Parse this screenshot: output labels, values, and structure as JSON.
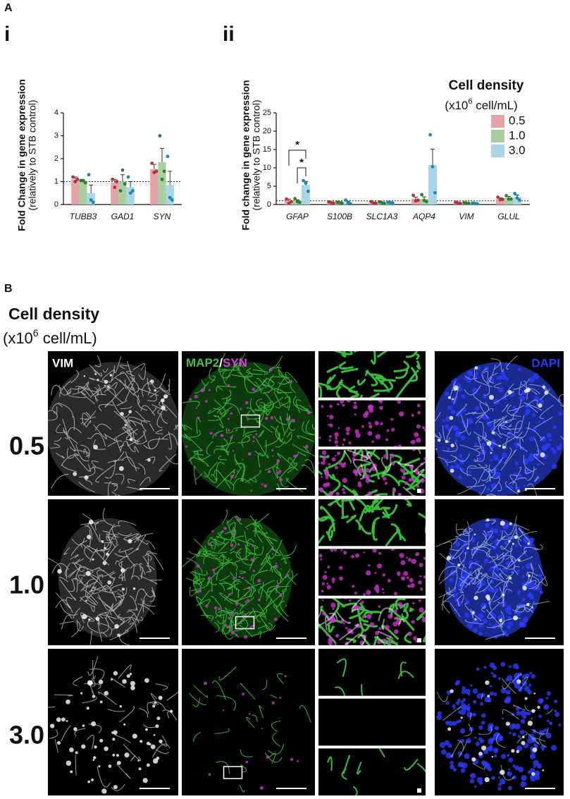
{
  "panel_a": {
    "label": "A",
    "sublabels": [
      "i",
      "ii"
    ]
  },
  "chart_data": [
    {
      "type": "bar",
      "ylabel": [
        "Fold Change in gene expression",
        "(relatively to STB control)"
      ],
      "categories": [
        "TUBB3",
        "GAD1",
        "SYN"
      ],
      "ylim": [
        0,
        4
      ],
      "yticks": [
        0,
        1,
        2,
        3,
        4
      ],
      "reference_line": 1,
      "series": [
        {
          "color": "#e3a2a6",
          "point_color": "#b8313a",
          "values": [
            1.1,
            0.95,
            1.55
          ],
          "errors": [
            0.1,
            0.15,
            0.2
          ],
          "points": [
            [
              1.2,
              1.0,
              1.1
            ],
            [
              1.1,
              0.75,
              1.0
            ],
            [
              1.8,
              1.4,
              1.45
            ]
          ]
        },
        {
          "color": "#a9cfa0",
          "point_color": "#2e7d32",
          "values": [
            1.0,
            1.0,
            1.85
          ],
          "errors": [
            0.05,
            0.3,
            0.6
          ],
          "points": [
            [
              1.05,
              1.05,
              0.95
            ],
            [
              0.6,
              1.5,
              0.9
            ],
            [
              3.0,
              1.1,
              1.45
            ]
          ]
        },
        {
          "color": "#a8d6e6",
          "point_color": "#1b86b3",
          "values": [
            0.5,
            0.75,
            0.85
          ],
          "errors": [
            0.35,
            0.25,
            0.6
          ],
          "points": [
            [
              1.3,
              0.2,
              0.1
            ],
            [
              1.2,
              0.5,
              0.6
            ],
            [
              2.1,
              0.3,
              0.2
            ]
          ]
        }
      ]
    },
    {
      "type": "bar",
      "ylabel": [
        "Fold change in gene expression",
        "(relatively to STB control)"
      ],
      "categories": [
        "GFAP",
        "S100B",
        "SLC1A3",
        "AQP4",
        "VIM",
        "GLUL"
      ],
      "ylim": [
        0,
        25
      ],
      "yticks": [
        0,
        5,
        10,
        15,
        20,
        25
      ],
      "reference_line": 1,
      "legend": {
        "title": "Cell density",
        "subtitle": [
          "(x10",
          "6",
          " cell/mL)"
        ]
      },
      "series": [
        {
          "name": "0.5",
          "color": "#e3a2a6",
          "point_color": "#b8313a",
          "values": [
            1.0,
            0.5,
            0.5,
            1.5,
            0.4,
            1.5
          ],
          "errors": [
            0.5,
            0.1,
            0.1,
            0.5,
            0.1,
            0.3
          ],
          "points": [
            [
              1.5,
              0.3,
              0.8
            ],
            [
              0.7,
              0.5,
              0.4
            ],
            [
              0.8,
              0.4,
              0.4
            ],
            [
              2.5,
              1.0,
              1.2
            ],
            [
              0.6,
              0.4,
              0.3
            ],
            [
              2.0,
              1.3,
              1.4
            ]
          ]
        },
        {
          "name": "1.0",
          "color": "#a9cfa0",
          "point_color": "#2e7d32",
          "values": [
            1.0,
            0.5,
            0.5,
            1.5,
            0.4,
            1.8
          ],
          "errors": [
            0.3,
            0.1,
            0.1,
            0.6,
            0.1,
            0.4
          ],
          "points": [
            [
              1.6,
              0.8,
              0.6
            ],
            [
              0.6,
              0.5,
              0.4
            ],
            [
              0.7,
              0.5,
              0.3
            ],
            [
              2.7,
              1.1,
              0.8
            ],
            [
              0.5,
              0.4,
              0.3
            ],
            [
              2.4,
              1.5,
              1.5
            ]
          ]
        },
        {
          "name": "3.0",
          "color": "#a8d6e6",
          "point_color": "#1b86b3",
          "values": [
            5.3,
            0.6,
            0.5,
            10.8,
            0.3,
            2.0
          ],
          "errors": [
            1.0,
            0.3,
            0.1,
            4.3,
            0.1,
            0.6
          ],
          "points": [
            [
              6.5,
              5.8,
              3.6
            ],
            [
              1.2,
              0.4,
              0.2
            ],
            [
              0.6,
              0.5,
              0.4
            ],
            [
              19.0,
              10.3,
              3.2
            ],
            [
              0.4,
              0.3,
              0.2
            ],
            [
              3.0,
              1.8,
              1.2
            ]
          ]
        }
      ],
      "annotations": [
        {
          "text": "*",
          "category": 0,
          "series": [
            0,
            2
          ]
        },
        {
          "text": "*",
          "category": 0,
          "series": [
            1,
            2
          ]
        }
      ]
    }
  ],
  "panel_b": {
    "label": "B",
    "title": "Cell density",
    "subtitle": [
      "(x10",
      "6",
      " cell/mL)"
    ],
    "columns": [
      {
        "text": "VIM",
        "color": "#ffffff"
      },
      {
        "text": "MAP2",
        "color": "#44c244"
      },
      {
        "text": "/",
        "color": "#ffffff"
      },
      {
        "text": "SYN",
        "color": "#e040e0"
      },
      {
        "text": "DAPI",
        "color": "#2040ff"
      }
    ],
    "rows": [
      "0.5",
      "1.0",
      "3.0"
    ]
  }
}
